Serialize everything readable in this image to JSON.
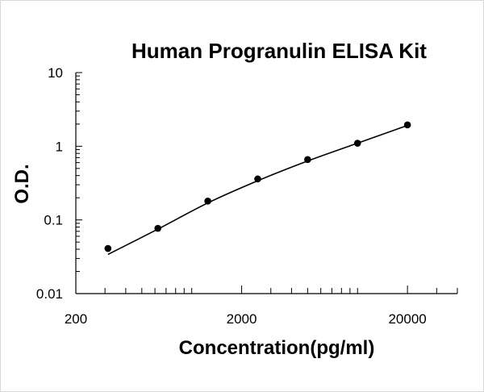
{
  "chart_data": {
    "type": "scatter",
    "title": "Human Progranulin ELISA Kit",
    "xlabel": "Concentration(pg/ml)",
    "ylabel": "O.D.",
    "x_scale": "log",
    "y_scale": "log",
    "xlim": [
      200,
      40000
    ],
    "ylim": [
      0.01,
      10
    ],
    "x_tick_labels": [
      {
        "value": 200,
        "label": "200"
      },
      {
        "value": 2000,
        "label": "2000"
      },
      {
        "value": 20000,
        "label": "20000"
      }
    ],
    "y_tick_labels": [
      {
        "value": 10,
        "label": "10"
      },
      {
        "value": 1,
        "label": "1"
      },
      {
        "value": 0.1,
        "label": "0.1"
      },
      {
        "value": 0.01,
        "label": "0.01"
      }
    ],
    "grid": false,
    "legend": "none",
    "series": [
      {
        "x": [
          312.5,
          625,
          1250,
          2500,
          5000,
          10000,
          20000
        ],
        "y": [
          0.041,
          0.077,
          0.18,
          0.36,
          0.66,
          1.1,
          1.95
        ]
      }
    ],
    "trendline": {
      "x": [
        312.5,
        625,
        1250,
        2500,
        5000,
        10000,
        20000
      ],
      "y": [
        0.034,
        0.075,
        0.17,
        0.34,
        0.63,
        1.1,
        1.92
      ]
    }
  }
}
